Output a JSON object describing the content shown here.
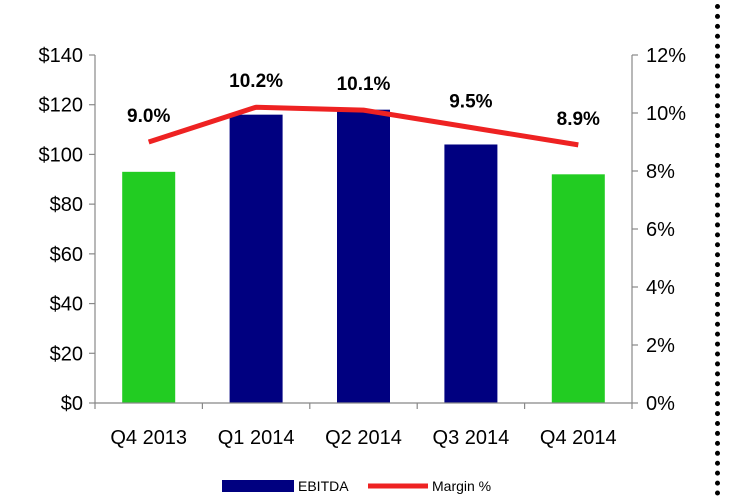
{
  "chart_data": {
    "type": "bar",
    "categories": [
      "Q4 2013",
      "Q1 2014",
      "Q2 2014",
      "Q3 2014",
      "Q4 2014"
    ],
    "series": [
      {
        "name": "EBITDA",
        "type": "bar",
        "axis": "left",
        "values": [
          93,
          116,
          118,
          104,
          92
        ],
        "colors": [
          "#22CC22",
          "#000080",
          "#000080",
          "#000080",
          "#22CC22"
        ]
      },
      {
        "name": "Margin %",
        "type": "line",
        "axis": "right",
        "values": [
          9.0,
          10.2,
          10.1,
          9.5,
          8.9
        ],
        "labels": [
          "9.0%",
          "10.2%",
          "10.1%",
          "9.5%",
          "8.9%"
        ],
        "color": "#EE2222"
      }
    ],
    "y_left": {
      "ylim": [
        0,
        140
      ],
      "ticks": [
        0,
        20,
        40,
        60,
        80,
        100,
        120,
        140
      ],
      "tick_labels": [
        "$0",
        "$20",
        "$40",
        "$60",
        "$80",
        "$100",
        "$120",
        "$140"
      ]
    },
    "y_right": {
      "ylim": [
        0,
        12
      ],
      "ticks": [
        0,
        2,
        4,
        6,
        8,
        10,
        12
      ],
      "tick_labels": [
        "0%",
        "2%",
        "4%",
        "6%",
        "8%",
        "10%",
        "12%"
      ]
    },
    "legend": {
      "placement": "bottom",
      "entries": [
        {
          "label": "EBITDA",
          "color": "#000080",
          "marker": "bar"
        },
        {
          "label": "Margin %",
          "color": "#EE2222",
          "marker": "line"
        }
      ]
    },
    "grid": false,
    "title": "",
    "xlabel": "",
    "ylabel": ""
  }
}
